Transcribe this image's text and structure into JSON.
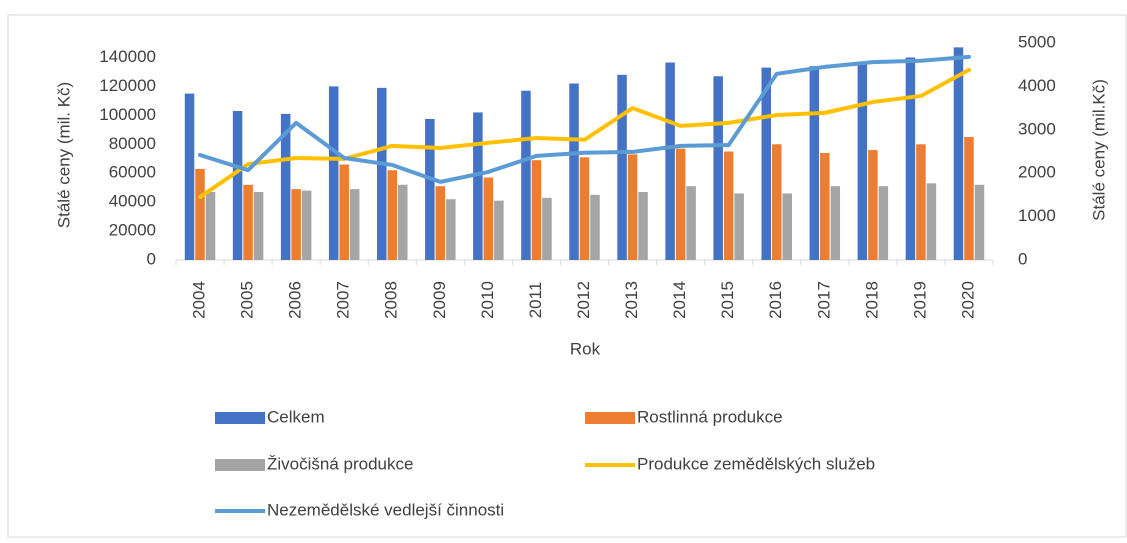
{
  "chart_data": {
    "type": "bar",
    "x_label": "Rok",
    "y_label": "Stálé ceny (mil. Kč)",
    "y2_label": "Stálé ceny (mil.Kč)",
    "categories": [
      "2004",
      "2005",
      "2006",
      "2007",
      "2008",
      "2009",
      "2010",
      "2011",
      "2012",
      "2013",
      "2014",
      "2015",
      "2016",
      "2017",
      "2018",
      "2019",
      "2020"
    ],
    "series": [
      {
        "name": "Celkem",
        "type": "bar",
        "color": "#4472c4",
        "values": [
          115000,
          103000,
          101000,
          120000,
          119000,
          97500,
          102000,
          117000,
          122000,
          128000,
          136500,
          127000,
          133000,
          134000,
          137000,
          140000,
          147000
        ]
      },
      {
        "name": "Rostlinná produkce",
        "type": "bar",
        "color": "#ed7d31",
        "values": [
          63000,
          52000,
          49000,
          66000,
          62000,
          51000,
          57000,
          69000,
          71000,
          73000,
          77000,
          75000,
          80000,
          74000,
          76000,
          80000,
          85000
        ]
      },
      {
        "name": "Živočišná produkce",
        "type": "bar",
        "color": "#a5a5a5",
        "values": [
          47000,
          47000,
          48000,
          49000,
          52000,
          42000,
          41000,
          43000,
          45000,
          47000,
          51000,
          46000,
          46000,
          51000,
          51000,
          53000,
          52000
        ]
      },
      {
        "name": "Produkce zemědělských služeb",
        "type": "line",
        "axis": "y2",
        "color": "#ffc000",
        "values": [
          1450,
          2210,
          2350,
          2330,
          2630,
          2580,
          2700,
          2810,
          2770,
          3500,
          3090,
          3160,
          3340,
          3390,
          3640,
          3780,
          4380
        ]
      },
      {
        "name": "Nezemědělské vedlejší činnosti",
        "type": "line",
        "axis": "y2",
        "color": "#5b9bd5",
        "values": [
          2420,
          2070,
          3160,
          2350,
          2190,
          1800,
          2030,
          2400,
          2470,
          2490,
          2630,
          2650,
          4290,
          4450,
          4560,
          4590,
          4680
        ]
      }
    ],
    "ylim": [
      0,
      150000
    ],
    "yticks": [
      0,
      20000,
      40000,
      60000,
      80000,
      100000,
      120000,
      140000
    ],
    "y2lim": [
      0,
      5000
    ],
    "y2ticks": [
      0,
      1000,
      2000,
      3000,
      4000,
      5000
    ],
    "legend": "bottom"
  }
}
